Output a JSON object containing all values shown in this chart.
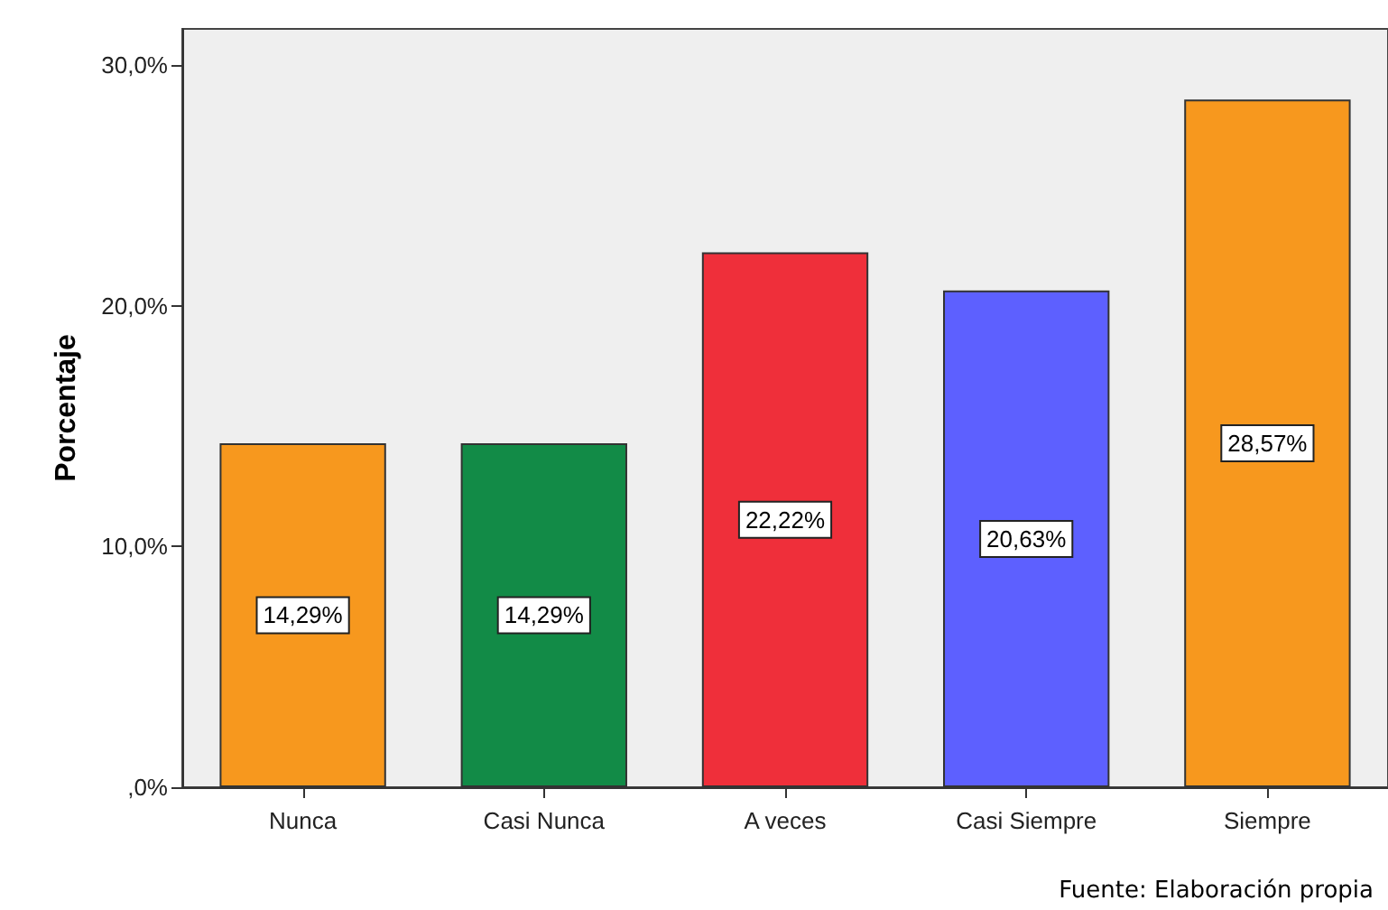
{
  "chart_data": {
    "type": "bar",
    "ylabel": "Porcentaje",
    "categories": [
      "Nunca",
      "Casi Nunca",
      "A veces",
      "Casi Siempre",
      "Siempre"
    ],
    "values": [
      14.29,
      14.29,
      22.22,
      20.63,
      28.57
    ],
    "colors": [
      "#f7981e",
      "#128b47",
      "#ef2f3a",
      "#5d60ff",
      "#f7981e"
    ],
    "value_labels": [
      "14,29%",
      "14,29%",
      "22,22%",
      "20,63%",
      "28,57%"
    ],
    "ylim": [
      0,
      31.5
    ],
    "yticks": [
      {
        "value": 0,
        "label": ",0%"
      },
      {
        "value": 10,
        "label": "10,0%"
      },
      {
        "value": 20,
        "label": "20,0%"
      },
      {
        "value": 30,
        "label": "30,0%"
      }
    ],
    "grid": false,
    "annotations": [
      "Fuente: Elaboración propia"
    ]
  }
}
